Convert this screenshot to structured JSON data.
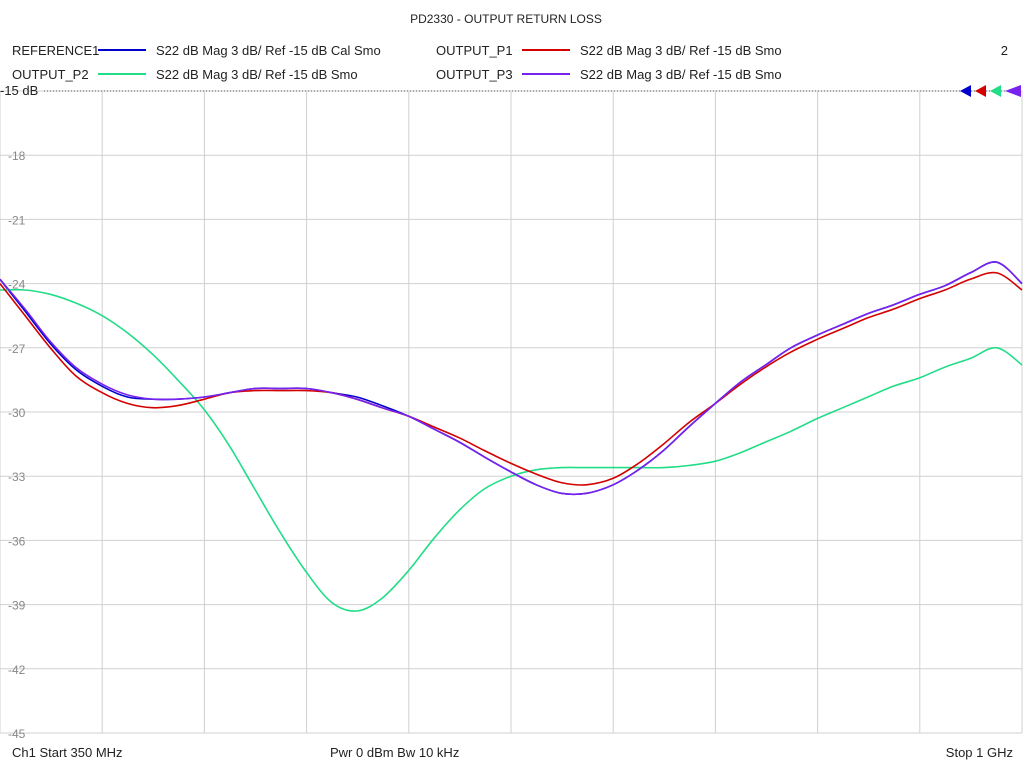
{
  "chart_data": {
    "type": "line",
    "title": "PD2330 - OUTPUT RETURN LOSS",
    "trace_number": "2",
    "reference_label": "-15 dB",
    "xlim": [
      350,
      1000
    ],
    "ylim": [
      -45,
      -15
    ],
    "yticks": [
      -15,
      -18,
      -21,
      -24,
      -27,
      -30,
      -33,
      -36,
      -39,
      -42,
      -45
    ],
    "ytick_labels": [
      "-15",
      "-18",
      "-21",
      "-24",
      "-27",
      "-30",
      "-33",
      "-36",
      "-39",
      "-42",
      "-45"
    ],
    "xgrid": [
      350,
      415,
      480,
      545,
      610,
      675,
      740,
      805,
      870,
      935,
      1000
    ],
    "grid": true,
    "legend_position": "top",
    "series": [
      {
        "name": "REFERENCE1",
        "desc": "S22  dB Mag  3 dB/ Ref -15 dB  Cal Smo",
        "color": "#0000cc",
        "x": [
          350,
          365,
          382,
          398,
          415,
          431,
          447,
          463,
          480,
          496,
          512,
          528,
          545,
          561,
          577,
          593,
          610,
          626,
          642,
          658,
          675,
          691,
          707,
          723,
          740,
          756,
          772,
          788,
          805,
          821,
          837,
          853,
          870,
          886,
          902,
          918,
          935,
          951,
          967,
          984,
          1000
        ],
        "y": [
          -23.8,
          -25.2,
          -26.8,
          -28.0,
          -28.8,
          -29.3,
          -29.4,
          -29.4,
          -29.3,
          -29.1,
          -28.9,
          -28.9,
          -28.9,
          -29.1,
          -29.3,
          -29.7,
          -30.2,
          -30.8,
          -31.4,
          -32.1,
          -32.8,
          -33.4,
          -33.8,
          -33.8,
          -33.4,
          -32.7,
          -31.8,
          -30.7,
          -29.6,
          -28.6,
          -27.8,
          -27.0,
          -26.4,
          -25.9,
          -25.4,
          -25.0,
          -24.5,
          -24.1,
          -23.5,
          -23.0,
          -24.0
        ]
      },
      {
        "name": "OUTPUT_P1",
        "desc": "S22  dB Mag  3 dB/ Ref -15 dB  Smo",
        "color": "#d40000",
        "x": [
          350,
          366,
          382,
          398,
          415,
          431,
          447,
          463,
          480,
          496,
          512,
          528,
          545,
          561,
          577,
          593,
          610,
          626,
          642,
          658,
          675,
          691,
          707,
          723,
          740,
          756,
          772,
          788,
          805,
          821,
          837,
          853,
          870,
          886,
          902,
          918,
          935,
          951,
          967,
          984,
          1000
        ],
        "y": [
          -24.0,
          -25.5,
          -27.0,
          -28.3,
          -29.1,
          -29.6,
          -29.8,
          -29.7,
          -29.4,
          -29.1,
          -29.0,
          -29.0,
          -29.0,
          -29.1,
          -29.4,
          -29.8,
          -30.2,
          -30.7,
          -31.2,
          -31.8,
          -32.4,
          -32.9,
          -33.3,
          -33.4,
          -33.1,
          -32.4,
          -31.5,
          -30.5,
          -29.6,
          -28.7,
          -27.9,
          -27.2,
          -26.6,
          -26.1,
          -25.6,
          -25.2,
          -24.7,
          -24.3,
          -23.8,
          -23.5,
          -24.3
        ]
      },
      {
        "name": "OUTPUT_P2",
        "desc": "S22  dB Mag  3 dB/ Ref -15 dB  Smo",
        "color": "#22dd88",
        "x": [
          350,
          366,
          382,
          398,
          415,
          431,
          447,
          463,
          480,
          496,
          512,
          528,
          545,
          561,
          577,
          593,
          610,
          626,
          642,
          658,
          675,
          691,
          707,
          723,
          740,
          756,
          772,
          788,
          805,
          821,
          837,
          853,
          870,
          886,
          902,
          918,
          935,
          951,
          967,
          984,
          1000
        ],
        "y": [
          -24.3,
          -24.3,
          -24.5,
          -24.9,
          -25.5,
          -26.3,
          -27.3,
          -28.5,
          -29.9,
          -31.6,
          -33.6,
          -35.6,
          -37.5,
          -38.9,
          -39.3,
          -38.7,
          -37.4,
          -35.9,
          -34.6,
          -33.6,
          -33.0,
          -32.7,
          -32.6,
          -32.6,
          -32.6,
          -32.6,
          -32.6,
          -32.5,
          -32.3,
          -31.9,
          -31.4,
          -30.9,
          -30.3,
          -29.8,
          -29.3,
          -28.8,
          -28.4,
          -27.9,
          -27.5,
          -27.0,
          -27.8
        ]
      },
      {
        "name": "OUTPUT_P3",
        "desc": "S22  dB Mag  3 dB/ Ref -15 dB  Smo",
        "color": "#7722ee",
        "x": [
          350,
          366,
          382,
          398,
          415,
          431,
          447,
          463,
          480,
          496,
          512,
          528,
          545,
          561,
          577,
          593,
          610,
          626,
          642,
          658,
          675,
          691,
          707,
          723,
          740,
          756,
          772,
          788,
          805,
          821,
          837,
          853,
          870,
          886,
          902,
          918,
          935,
          951,
          967,
          984,
          1000
        ],
        "y": [
          -23.8,
          -25.2,
          -26.7,
          -27.9,
          -28.7,
          -29.2,
          -29.4,
          -29.4,
          -29.3,
          -29.1,
          -28.9,
          -28.9,
          -28.9,
          -29.1,
          -29.4,
          -29.8,
          -30.2,
          -30.8,
          -31.4,
          -32.1,
          -32.8,
          -33.4,
          -33.8,
          -33.8,
          -33.4,
          -32.7,
          -31.8,
          -30.7,
          -29.6,
          -28.6,
          -27.8,
          -27.0,
          -26.4,
          -25.9,
          -25.4,
          -25.0,
          -24.5,
          -24.1,
          -23.5,
          -23.0,
          -24.0
        ]
      }
    ]
  },
  "footer": {
    "start": "Ch1  Start  350 MHz",
    "center": "Pwr  0 dBm  Bw  10 kHz",
    "stop": "Stop  1 GHz"
  }
}
